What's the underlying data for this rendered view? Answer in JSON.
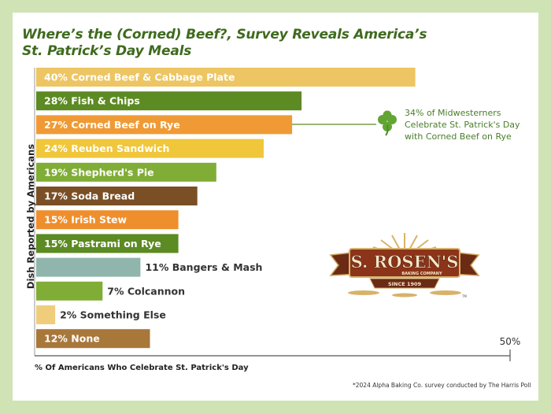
{
  "title_line1": "Where’s the (Corned) Beef?, Survey Reveals America’s",
  "title_line2": "St. Patrick’s Day Meals",
  "callout": {
    "line1": "34%  of Midwesterners",
    "line2": "Celebrate St. Patrick's Day",
    "line3": "with Corned Beef on Rye",
    "icon": "shamrock-icon"
  },
  "logo": {
    "name": "S. ROSEN'S",
    "sub": "BAKING COMPANY",
    "since": "SINCE 1909",
    "tm": "TM"
  },
  "footnote": "*2024 Alpha Baking Co. survey conducted by The Harris Poll",
  "chart_data": {
    "type": "bar",
    "orientation": "horizontal",
    "title": "Where’s the (Corned) Beef?, Survey Reveals America’s St. Patrick’s Day Meals",
    "xlabel": "% Of Americans Who Celebrate St. Patrick's Day",
    "ylabel": "Dish Reported by  Americans",
    "xlim": [
      0,
      50
    ],
    "x_tick_label": "50%",
    "grid": false,
    "legend": "none",
    "bars": [
      {
        "label": "40% Corned Beef & Cabbage Plate",
        "value": 40,
        "color": "#edc562",
        "label_color": "#ffffff",
        "label_inside": true
      },
      {
        "label": "28% Fish & Chips",
        "value": 28,
        "color": "#5c8a23",
        "label_color": "#ffffff",
        "label_inside": true
      },
      {
        "label": "27% Corned Beef on Rye",
        "value": 27,
        "color": "#f09a35",
        "label_color": "#ffffff",
        "label_inside": true
      },
      {
        "label": "24% Reuben Sandwich",
        "value": 24,
        "color": "#f0c63a",
        "label_color": "#ffffff",
        "label_inside": true
      },
      {
        "label": "19% Shepherd's Pie",
        "value": 19,
        "color": "#80ad36",
        "label_color": "#ffffff",
        "label_inside": true
      },
      {
        "label": "17% Soda Bread",
        "value": 17,
        "color": "#7a4f26",
        "label_color": "#ffffff",
        "label_inside": true
      },
      {
        "label": "15% Irish Stew",
        "value": 15,
        "color": "#ef8e2c",
        "label_color": "#ffffff",
        "label_inside": true
      },
      {
        "label": "15% Pastrami on Rye",
        "value": 15,
        "color": "#5c8a23",
        "label_color": "#ffffff",
        "label_inside": true
      },
      {
        "label": "11% Bangers & Mash",
        "value": 11,
        "color": "#8fb5ad",
        "label_color": "#333333",
        "label_inside": false
      },
      {
        "label": "7% Colcannon",
        "value": 7,
        "color": "#80ad36",
        "label_color": "#333333",
        "label_inside": false
      },
      {
        "label": "2% Something Else",
        "value": 2,
        "color": "#efcd7a",
        "label_color": "#333333",
        "label_inside": false
      },
      {
        "label": "12% None",
        "value": 12,
        "color": "#a8773a",
        "label_color": "#ffffff",
        "label_inside": true
      }
    ]
  }
}
